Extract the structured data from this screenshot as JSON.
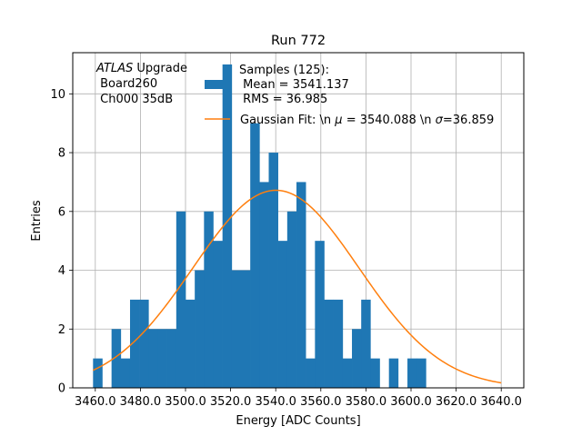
{
  "chart_data": {
    "type": "bar",
    "title": "Run 772",
    "xlabel": "Energy [ADC Counts]",
    "ylabel": "Entries",
    "xlim": [
      3450.0,
      3650.0
    ],
    "ylim": [
      0,
      11.4
    ],
    "grid": true,
    "x_ticks": [
      {
        "value": 3460.0,
        "label": "3460.0"
      },
      {
        "value": 3480.0,
        "label": "3480.0"
      },
      {
        "value": 3500.0,
        "label": "3500.0"
      },
      {
        "value": 3520.0,
        "label": "3520.0"
      },
      {
        "value": 3540.0,
        "label": "3540.0"
      },
      {
        "value": 3560.0,
        "label": "3560.0"
      },
      {
        "value": 3580.0,
        "label": "3580.0"
      },
      {
        "value": 3600.0,
        "label": "3600.0"
      },
      {
        "value": 3620.0,
        "label": "3620.0"
      },
      {
        "value": 3640.0,
        "label": "3640.0"
      }
    ],
    "y_ticks": [
      {
        "value": 0,
        "label": "0"
      },
      {
        "value": 2,
        "label": "2"
      },
      {
        "value": 4,
        "label": "4"
      },
      {
        "value": 6,
        "label": "6"
      },
      {
        "value": 8,
        "label": "8"
      },
      {
        "value": 10,
        "label": "10"
      }
    ],
    "bin_edges_start": 3459.0,
    "bin_width": 4.1,
    "bin_counts": [
      1,
      0,
      2,
      1,
      3,
      3,
      2,
      2,
      2,
      6,
      3,
      4,
      6,
      5,
      11,
      4,
      4,
      9,
      7,
      8,
      5,
      6,
      7,
      1,
      5,
      3,
      3,
      1,
      2,
      3,
      1,
      0,
      1,
      0,
      1,
      1
    ],
    "bar_color": "#1f77b4",
    "fit": {
      "mean": 3540.088,
      "sigma": 36.859,
      "amplitude": 6.72,
      "x_range": [
        3459.0,
        3640.0
      ],
      "color": "#ff7f0e"
    },
    "annotation": {
      "line1_italic": "ATLAS",
      "line1_rest": " Upgrade",
      "line2": " Board260",
      "line3": " Ch000 35dB"
    },
    "legend": {
      "location": "upper-right",
      "hist_line1": "Samples (125):",
      "hist_line2": " Mean = 3541.137",
      "hist_line3": " RMS = 36.985",
      "fit_label_prefix": "Gaussian Fit: \\n ",
      "fit_mu_symbol": "μ",
      "fit_label_mid": " = 3540.088 \\n ",
      "fit_sigma_symbol": "σ",
      "fit_label_end": "=36.859"
    }
  }
}
